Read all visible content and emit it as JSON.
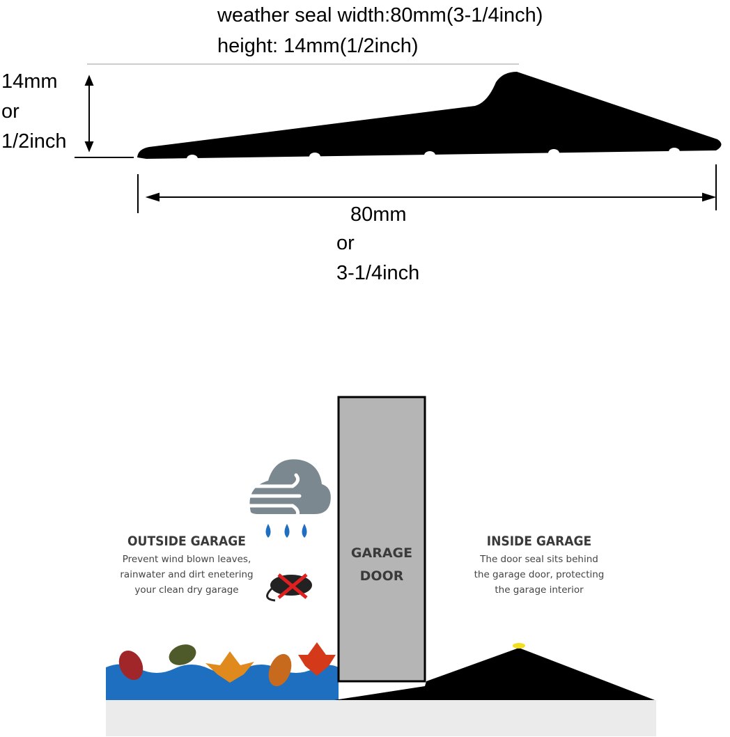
{
  "top_diagram": {
    "title_lines": [
      "weather seal width:80mm(3-1/4inch)",
      "height: 14mm(1/2inch)"
    ],
    "height_label": [
      "14mm",
      "or",
      "1/2inch"
    ],
    "width_label": [
      "80mm",
      "or",
      "3-1/4inch"
    ]
  },
  "garage_diagram": {
    "outside": {
      "heading": "OUTSIDE GARAGE",
      "lines": [
        "Prevent wind blown leaves,",
        "rainwater and dirt enetering",
        "your clean dry garage"
      ]
    },
    "door": [
      "GARAGE",
      "DOOR"
    ],
    "inside": {
      "heading": "INSIDE GARAGE",
      "lines": [
        "The door seal sits behind",
        "the garage door, protecting",
        "the garage interior"
      ]
    }
  }
}
